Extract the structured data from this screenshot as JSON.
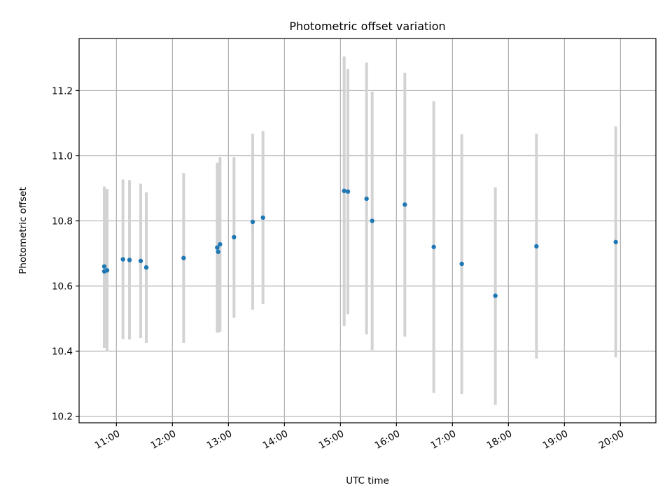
{
  "chart_data": {
    "type": "scatter",
    "title": "Photometric offset variation",
    "xlabel": "UTC time",
    "ylabel": "Photometric offset",
    "grid": true,
    "x_tick_labels": [
      "11:00",
      "12:00",
      "13:00",
      "14:00",
      "15:00",
      "16:00",
      "17:00",
      "18:00",
      "19:00",
      "20:00"
    ],
    "x_tick_hours": [
      11,
      12,
      13,
      14,
      15,
      16,
      17,
      18,
      19,
      20
    ],
    "y_ticks": [
      10.2,
      10.4,
      10.6,
      10.8,
      11.0,
      11.2
    ],
    "y_tick_labels": [
      "10.2",
      "10.4",
      "10.6",
      "10.8",
      "11.0",
      "11.2"
    ],
    "xlim": [
      "10:20",
      "20:38"
    ],
    "ylim": [
      10.18,
      11.36
    ],
    "marker_color": "#1f77b4",
    "errorbar_color": "#d3d3d3",
    "points": [
      {
        "time": "10:47",
        "y": 10.66,
        "ylow": 10.41,
        "yhigh": 10.905
      },
      {
        "time": "10:47",
        "y": 10.645,
        "ylow": 10.41,
        "yhigh": 10.905
      },
      {
        "time": "10:50",
        "y": 10.648,
        "ylow": 10.4,
        "yhigh": 10.898
      },
      {
        "time": "11:07",
        "y": 10.682,
        "ylow": 10.437,
        "yhigh": 10.927
      },
      {
        "time": "11:14",
        "y": 10.68,
        "ylow": 10.436,
        "yhigh": 10.925
      },
      {
        "time": "11:26",
        "y": 10.677,
        "ylow": 10.44,
        "yhigh": 10.914
      },
      {
        "time": "11:32",
        "y": 10.657,
        "ylow": 10.425,
        "yhigh": 10.888
      },
      {
        "time": "12:12",
        "y": 10.686,
        "ylow": 10.425,
        "yhigh": 10.947
      },
      {
        "time": "12:48",
        "y": 10.718,
        "ylow": 10.457,
        "yhigh": 10.978
      },
      {
        "time": "12:49",
        "y": 10.705,
        "ylow": 10.457,
        "yhigh": 10.978
      },
      {
        "time": "12:51",
        "y": 10.728,
        "ylow": 10.46,
        "yhigh": 10.996
      },
      {
        "time": "13:06",
        "y": 10.75,
        "ylow": 10.503,
        "yhigh": 10.996
      },
      {
        "time": "13:26",
        "y": 10.797,
        "ylow": 10.527,
        "yhigh": 11.068
      },
      {
        "time": "13:37",
        "y": 10.81,
        "ylow": 10.545,
        "yhigh": 11.076
      },
      {
        "time": "15:04",
        "y": 10.892,
        "ylow": 10.477,
        "yhigh": 11.305
      },
      {
        "time": "15:08",
        "y": 10.89,
        "ylow": 10.513,
        "yhigh": 11.266
      },
      {
        "time": "15:28",
        "y": 10.868,
        "ylow": 10.452,
        "yhigh": 11.286
      },
      {
        "time": "15:34",
        "y": 10.8,
        "ylow": 10.403,
        "yhigh": 11.197
      },
      {
        "time": "16:09",
        "y": 10.85,
        "ylow": 10.445,
        "yhigh": 11.255
      },
      {
        "time": "16:40",
        "y": 10.72,
        "ylow": 10.272,
        "yhigh": 11.168
      },
      {
        "time": "17:10",
        "y": 10.668,
        "ylow": 10.268,
        "yhigh": 11.066
      },
      {
        "time": "17:46",
        "y": 10.57,
        "ylow": 10.235,
        "yhigh": 10.903
      },
      {
        "time": "18:30",
        "y": 10.722,
        "ylow": 10.377,
        "yhigh": 11.068
      },
      {
        "time": "19:55",
        "y": 10.735,
        "ylow": 10.381,
        "yhigh": 11.09
      }
    ]
  }
}
